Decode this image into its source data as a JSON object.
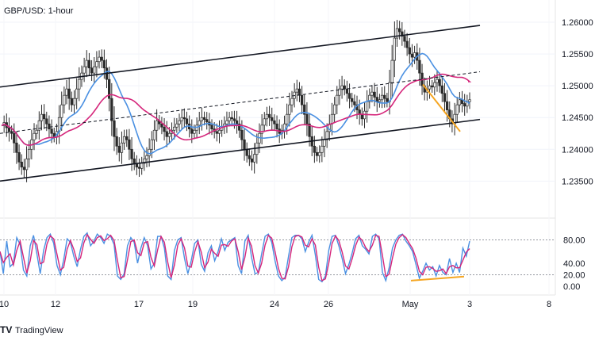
{
  "chart_data": {
    "type": "candlestick",
    "title": "GBP/USD: 1-hour",
    "x_tick_labels": [
      "10",
      "12",
      "17",
      "19",
      "24",
      "26",
      "May",
      "3",
      "8"
    ],
    "price_axis": {
      "tick_labels": [
        "1.26000",
        "1.25500",
        "1.25000",
        "1.24500",
        "1.24000",
        "1.23500"
      ],
      "ticks": [
        1.26,
        1.255,
        1.25,
        1.245,
        1.24,
        1.235
      ],
      "ylim": [
        1.2308,
        1.2625
      ]
    },
    "oscillator_axis": {
      "tick_labels": [
        "80.00",
        "40.00",
        "20.00",
        "0.00"
      ],
      "ticks": [
        80,
        40,
        20,
        0
      ],
      "ylim": [
        -12,
        108
      ]
    },
    "price_series": [
      1.2437,
      1.2442,
      1.2434,
      1.2428,
      1.2425,
      1.241,
      1.2395,
      1.238,
      1.2372,
      1.2368,
      1.2385,
      1.24,
      1.2415,
      1.2425,
      1.243,
      1.2445,
      1.2455,
      1.2448,
      1.244,
      1.2432,
      1.2425,
      1.242,
      1.2428,
      1.245,
      1.247,
      1.2485,
      1.2495,
      1.248,
      1.247,
      1.248,
      1.2495,
      1.251,
      1.252,
      1.253,
      1.254,
      1.2528,
      1.252,
      1.253,
      1.2538,
      1.2545,
      1.254,
      1.2528,
      1.251,
      1.248,
      1.2445,
      1.242,
      1.2405,
      1.2395,
      1.241,
      1.242,
      1.2415,
      1.24,
      1.2385,
      1.2378,
      1.2372,
      1.237,
      1.2378,
      1.2385,
      1.239,
      1.24,
      1.2415,
      1.243,
      1.2445,
      1.244,
      1.2435,
      1.2428,
      1.242,
      1.2425,
      1.243,
      1.2435,
      1.244,
      1.2445,
      1.245,
      1.2448,
      1.244,
      1.2432,
      1.2425,
      1.243,
      1.2438,
      1.2445,
      1.245,
      1.2447,
      1.2443,
      1.2438,
      1.2432,
      1.2428,
      1.2425,
      1.243,
      1.2436,
      1.244,
      1.2445,
      1.245,
      1.2448,
      1.2445,
      1.244,
      1.243,
      1.2415,
      1.24,
      1.239,
      1.2385,
      1.238,
      1.2392,
      1.241,
      1.2425,
      1.2438,
      1.2448,
      1.2455,
      1.245,
      1.2445,
      1.244,
      1.2432,
      1.2425,
      1.243,
      1.244,
      1.2455,
      1.247,
      1.248,
      1.249,
      1.2495,
      1.2485,
      1.247,
      1.2455,
      1.244,
      1.242,
      1.2405,
      1.2395,
      1.239,
      1.2395,
      1.2405,
      1.2415,
      1.2428,
      1.244,
      1.2455,
      1.247,
      1.2485,
      1.2495,
      1.25,
      1.2495,
      1.2488,
      1.248,
      1.2475,
      1.247,
      1.2462,
      1.2455,
      1.2448,
      1.246,
      1.2475,
      1.2485,
      1.249,
      1.2482,
      1.2475,
      1.2478,
      1.2485,
      1.248,
      1.2475,
      1.2505,
      1.254,
      1.2575,
      1.259,
      1.2585,
      1.2578,
      1.257,
      1.256,
      1.255,
      1.2545,
      1.2552,
      1.254,
      1.252,
      1.25,
      1.249,
      1.2495,
      1.25,
      1.2498,
      1.2505,
      1.251,
      1.25,
      1.2488,
      1.2475,
      1.2462,
      1.2448,
      1.244,
      1.2455,
      1.247,
      1.2478,
      1.2472,
      1.2468,
      1.2475,
      1.2478
    ],
    "rsi_series": [
      60,
      22,
      78,
      34,
      40,
      84,
      72,
      28,
      18,
      70,
      88,
      56,
      22,
      62,
      84,
      90,
      74,
      36,
      20,
      46,
      82,
      76,
      52,
      34,
      64,
      86,
      92,
      70,
      78,
      90,
      84,
      74,
      90,
      86,
      72,
      18,
      12,
      22,
      70,
      84,
      76,
      40,
      66,
      84,
      70,
      30,
      40,
      86,
      86,
      66,
      18,
      12,
      62,
      80,
      84,
      48,
      22,
      44,
      74,
      80,
      38,
      26,
      58,
      70,
      44,
      60,
      82,
      62,
      76,
      80,
      84,
      36,
      22,
      78,
      88,
      50,
      22,
      24,
      56,
      86,
      90,
      76,
      44,
      18,
      10,
      16,
      52,
      84,
      88,
      88,
      82,
      60,
      76,
      88,
      54,
      12,
      8,
      18,
      62,
      86,
      88,
      70,
      48,
      22,
      38,
      58,
      82,
      88,
      70,
      64,
      56,
      86,
      90,
      82,
      24,
      10,
      32,
      66,
      80,
      88,
      90,
      78,
      70,
      60,
      38,
      14,
      26,
      40,
      28,
      34,
      18,
      36,
      24,
      20,
      48,
      24,
      40,
      24,
      66,
      52,
      78
    ],
    "indicators": {
      "blue_ma_color": "#4a90e2",
      "magenta_ma_color": "#d5267b",
      "channel_color": "#131722",
      "trendline_color": "#f5a623"
    },
    "grid": true
  },
  "branding": {
    "logo_text": "TradingView",
    "logo_glyph": "TV"
  }
}
